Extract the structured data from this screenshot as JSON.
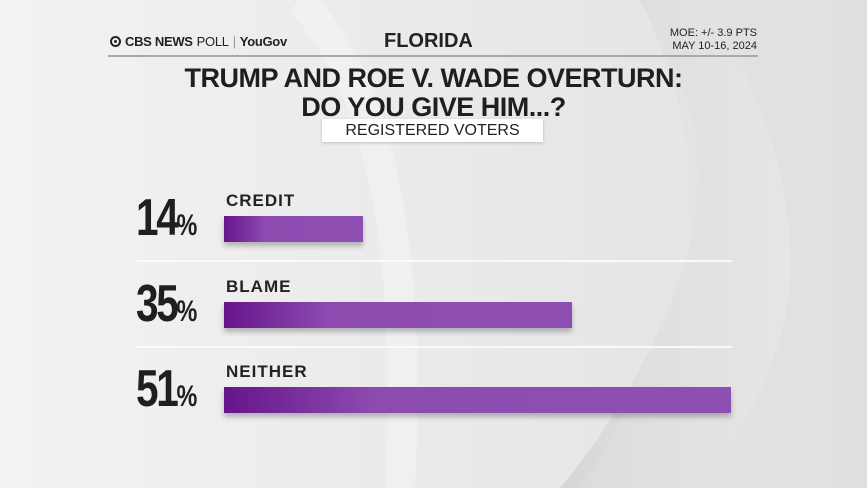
{
  "header": {
    "brand": "CBS NEWS",
    "brand_poll": "POLL",
    "partner": "YouGov",
    "state": "FLORIDA",
    "moe": "MOE: +/- 3.9 PTS",
    "dates": "MAY 10-16, 2024"
  },
  "chart_data": {
    "type": "bar",
    "orientation": "horizontal",
    "title_line1": "TRUMP AND ROE V. WADE OVERTURN:",
    "title_line2": "DO YOU GIVE HIM...?",
    "subtitle": "REGISTERED VOTERS",
    "categories": [
      "CREDIT",
      "BLAME",
      "NEITHER"
    ],
    "values": [
      14,
      35,
      51
    ],
    "value_labels": [
      "14",
      "35",
      "51"
    ],
    "unit": "%",
    "bar_color": "#8d4bb0"
  }
}
